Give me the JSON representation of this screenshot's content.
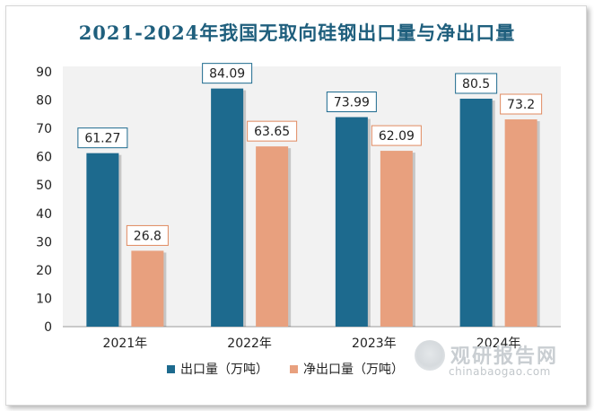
{
  "chart_data": {
    "type": "bar",
    "title": "2021-2024年我国无取向硅钢出口量与净出口量",
    "categories": [
      "2021年",
      "2022年",
      "2023年",
      "2024年"
    ],
    "series": [
      {
        "name": "出口量（万吨）",
        "values": [
          61.27,
          84.09,
          73.99,
          80.5
        ],
        "labels": [
          "61.27",
          "84.09",
          "73.99",
          "80.5"
        ],
        "color": "#1d6a8e",
        "label_border": "#1d6a8e"
      },
      {
        "name": "净出口量（万吨）",
        "values": [
          26.8,
          63.65,
          62.09,
          73.2
        ],
        "labels": [
          "26.8",
          "63.65",
          "62.09",
          "73.2"
        ],
        "color": "#e8a07e",
        "label_border": "#e08a60"
      }
    ],
    "ylim": [
      0,
      90
    ],
    "yticks": [
      0,
      10,
      20,
      30,
      40,
      50,
      60,
      70,
      80,
      90
    ],
    "grid": false,
    "legend": "bottom"
  },
  "watermark": {
    "name": "观研报告网",
    "url": "chinabaogao.com"
  },
  "colors": {
    "title": "#1f5f7d",
    "plot_background": "#f2f2f2"
  }
}
